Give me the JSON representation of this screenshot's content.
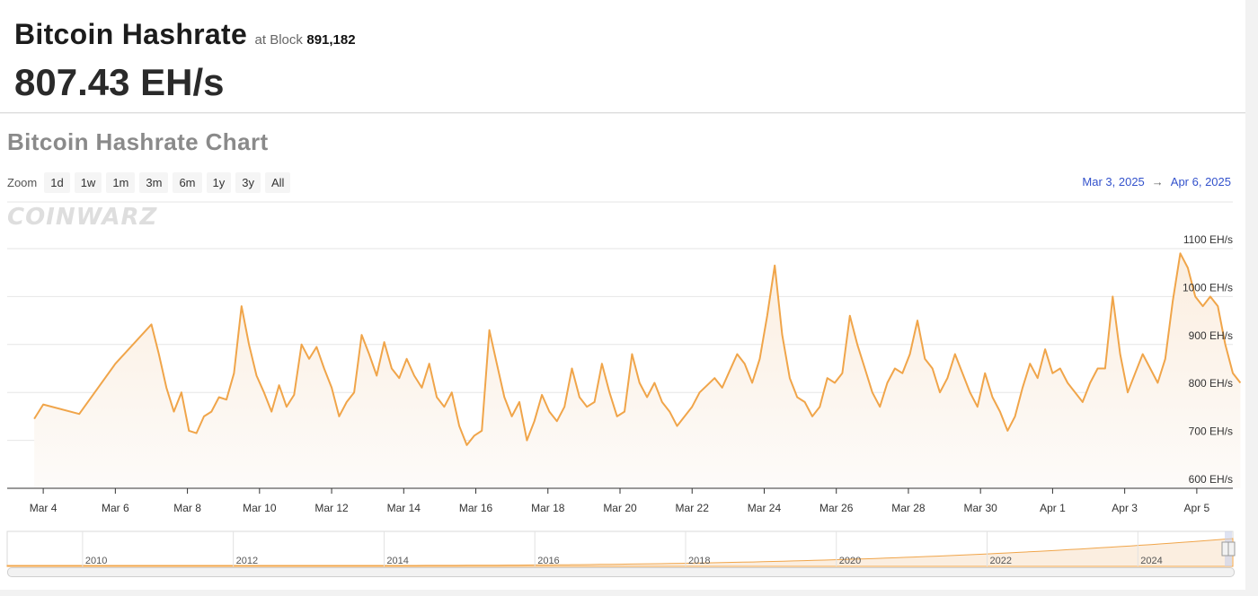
{
  "header": {
    "title": "Bitcoin Hashrate",
    "at_label": "at Block",
    "block": "891,182",
    "rate": "807.43 EH/s"
  },
  "chart_title": "Bitcoin Hashrate Chart",
  "zoom": {
    "label": "Zoom",
    "buttons": [
      "1d",
      "1w",
      "1m",
      "3m",
      "6m",
      "1y",
      "3y",
      "All"
    ]
  },
  "range": {
    "from": "Mar 3, 2025",
    "arrow": "→",
    "to": "Apr 6, 2025"
  },
  "watermark": "COINWARZ",
  "colors": {
    "line": "#f0a54a",
    "area_top": "#fbeee0",
    "area_bottom": "#fdfbf9",
    "link": "#3352cc"
  },
  "chart_data": {
    "type": "area",
    "title": "",
    "xlabel": "",
    "ylabel": "",
    "y_unit": "EH/s",
    "ylim": [
      600,
      1100
    ],
    "yticks": [
      600,
      700,
      800,
      900,
      1000,
      1100
    ],
    "ytick_labels": [
      "600 EH/s",
      "700 EH/s",
      "800 EH/s",
      "900 EH/s",
      "1000 EH/s",
      "1100 EH/s"
    ],
    "xlim": [
      "Mar 3, 2025",
      "Apr 6, 2025"
    ],
    "xticks": [
      "Mar 4",
      "Mar 6",
      "Mar 8",
      "Mar 10",
      "Mar 12",
      "Mar 14",
      "Mar 16",
      "Mar 18",
      "Mar 20",
      "Mar 22",
      "Mar 24",
      "Mar 26",
      "Mar 28",
      "Mar 30",
      "Apr 1",
      "Apr 3",
      "Apr 5"
    ],
    "grid": true,
    "series": [
      {
        "x": [
          "Mar 3 18:00",
          "Mar 4 00:00",
          "Mar 5 00:00",
          "Mar 6 00:00",
          "Mar 7 00:00",
          "Mar 7 05:00",
          "Mar 7 10:00",
          "Mar 7 15:00",
          "Mar 7 20:00",
          "Mar 8 01:00",
          "Mar 8 06:00",
          "Mar 8 11:00",
          "Mar 8 16:00",
          "Mar 8 21:00",
          "Mar 9 02:00",
          "Mar 9 07:00",
          "Mar 9 12:00",
          "Mar 9 17:00",
          "Mar 9 22:00",
          "Mar 10 03:00",
          "Mar 10 08:00",
          "Mar 10 13:00",
          "Mar 10 18:00",
          "Mar 10 23:00",
          "Mar 11 04:00",
          "Mar 11 09:00",
          "Mar 11 14:00",
          "Mar 11 19:00",
          "Mar 12 00:00",
          "Mar 12 05:00",
          "Mar 12 10:00",
          "Mar 12 15:00",
          "Mar 12 20:00",
          "Mar 13 01:00",
          "Mar 13 06:00",
          "Mar 13 11:00",
          "Mar 13 16:00",
          "Mar 13 21:00",
          "Mar 14 02:00",
          "Mar 14 07:00",
          "Mar 14 12:00",
          "Mar 14 17:00",
          "Mar 14 22:00",
          "Mar 15 03:00",
          "Mar 15 08:00",
          "Mar 15 13:00",
          "Mar 15 18:00",
          "Mar 15 23:00",
          "Mar 16 04:00",
          "Mar 16 09:00",
          "Mar 16 14:00",
          "Mar 16 19:00",
          "Mar 17 00:00",
          "Mar 17 05:00",
          "Mar 17 10:00",
          "Mar 17 15:00",
          "Mar 17 20:00",
          "Mar 18 01:00",
          "Mar 18 06:00",
          "Mar 18 11:00",
          "Mar 18 16:00",
          "Mar 18 21:00",
          "Mar 19 02:00",
          "Mar 19 07:00",
          "Mar 19 12:00",
          "Mar 19 17:00",
          "Mar 19 22:00",
          "Mar 20 03:00",
          "Mar 20 08:00",
          "Mar 20 13:00",
          "Mar 20 18:00",
          "Mar 20 23:00",
          "Mar 21 04:00",
          "Mar 21 09:00",
          "Mar 21 14:00",
          "Mar 21 19:00",
          "Mar 22 00:00",
          "Mar 22 05:00",
          "Mar 22 10:00",
          "Mar 22 15:00",
          "Mar 22 20:00",
          "Mar 23 01:00",
          "Mar 23 06:00",
          "Mar 23 11:00",
          "Mar 23 16:00",
          "Mar 23 21:00",
          "Mar 24 02:00",
          "Mar 24 07:00",
          "Mar 24 12:00",
          "Mar 24 17:00",
          "Mar 24 22:00",
          "Mar 25 03:00",
          "Mar 25 08:00",
          "Mar 25 13:00",
          "Mar 25 18:00",
          "Mar 25 23:00",
          "Mar 26 04:00",
          "Mar 26 09:00",
          "Mar 26 14:00",
          "Mar 26 19:00",
          "Mar 27 00:00",
          "Mar 27 05:00",
          "Mar 27 10:00",
          "Mar 27 15:00",
          "Mar 27 20:00",
          "Mar 28 01:00",
          "Mar 28 06:00",
          "Mar 28 11:00",
          "Mar 28 16:00",
          "Mar 28 21:00",
          "Mar 29 02:00",
          "Mar 29 07:00",
          "Mar 29 12:00",
          "Mar 29 17:00",
          "Mar 29 22:00",
          "Mar 30 03:00",
          "Mar 30 08:00",
          "Mar 30 13:00",
          "Mar 30 18:00",
          "Mar 30 23:00",
          "Mar 31 04:00",
          "Mar 31 09:00",
          "Mar 31 14:00",
          "Mar 31 19:00",
          "Apr 1 00:00",
          "Apr 1 05:00",
          "Apr 1 10:00",
          "Apr 1 15:00",
          "Apr 1 20:00",
          "Apr 2 01:00",
          "Apr 2 06:00",
          "Apr 2 11:00",
          "Apr 2 16:00",
          "Apr 2 21:00",
          "Apr 3 02:00",
          "Apr 3 07:00",
          "Apr 3 12:00",
          "Apr 3 17:00",
          "Apr 3 22:00",
          "Apr 4 03:00",
          "Apr 4 08:00",
          "Apr 4 13:00",
          "Apr 4 18:00",
          "Apr 4 23:00",
          "Apr 5 04:00",
          "Apr 5 09:00",
          "Apr 5 14:00",
          "Apr 5 19:00",
          "Apr 6 00:00",
          "Apr 6 05:00"
        ],
        "y": [
          745,
          775,
          755,
          860,
          942,
          880,
          810,
          760,
          800,
          720,
          715,
          750,
          760,
          790,
          785,
          840,
          980,
          900,
          835,
          800,
          760,
          815,
          770,
          795,
          900,
          870,
          895,
          850,
          810,
          750,
          780,
          800,
          920,
          880,
          835,
          905,
          850,
          830,
          870,
          835,
          810,
          860,
          790,
          770,
          800,
          730,
          690,
          710,
          720,
          930,
          860,
          790,
          750,
          780,
          700,
          740,
          795,
          760,
          740,
          770,
          850,
          790,
          770,
          780,
          860,
          800,
          750,
          760,
          880,
          820,
          790,
          820,
          780,
          760,
          730,
          750,
          770,
          800,
          815,
          830,
          810,
          845,
          880,
          860,
          820,
          870,
          960,
          1065,
          920,
          830,
          790,
          780,
          750,
          770,
          830,
          820,
          840,
          960,
          900,
          850,
          800,
          770,
          820,
          850,
          840,
          880,
          950,
          870,
          850,
          800,
          830,
          880,
          840,
          800,
          770,
          840,
          790,
          760,
          720,
          750,
          810,
          860,
          830,
          890,
          840,
          850,
          820,
          800,
          780,
          820,
          850,
          850,
          1000,
          880,
          800,
          840,
          880,
          850,
          820,
          870,
          990,
          1090,
          1060,
          1000,
          980,
          1000,
          980,
          900,
          840,
          820
        ]
      }
    ],
    "navigator": {
      "xticks": [
        "2010",
        "2012",
        "2014",
        "2016",
        "2018",
        "2020",
        "2022",
        "2024"
      ]
    }
  }
}
